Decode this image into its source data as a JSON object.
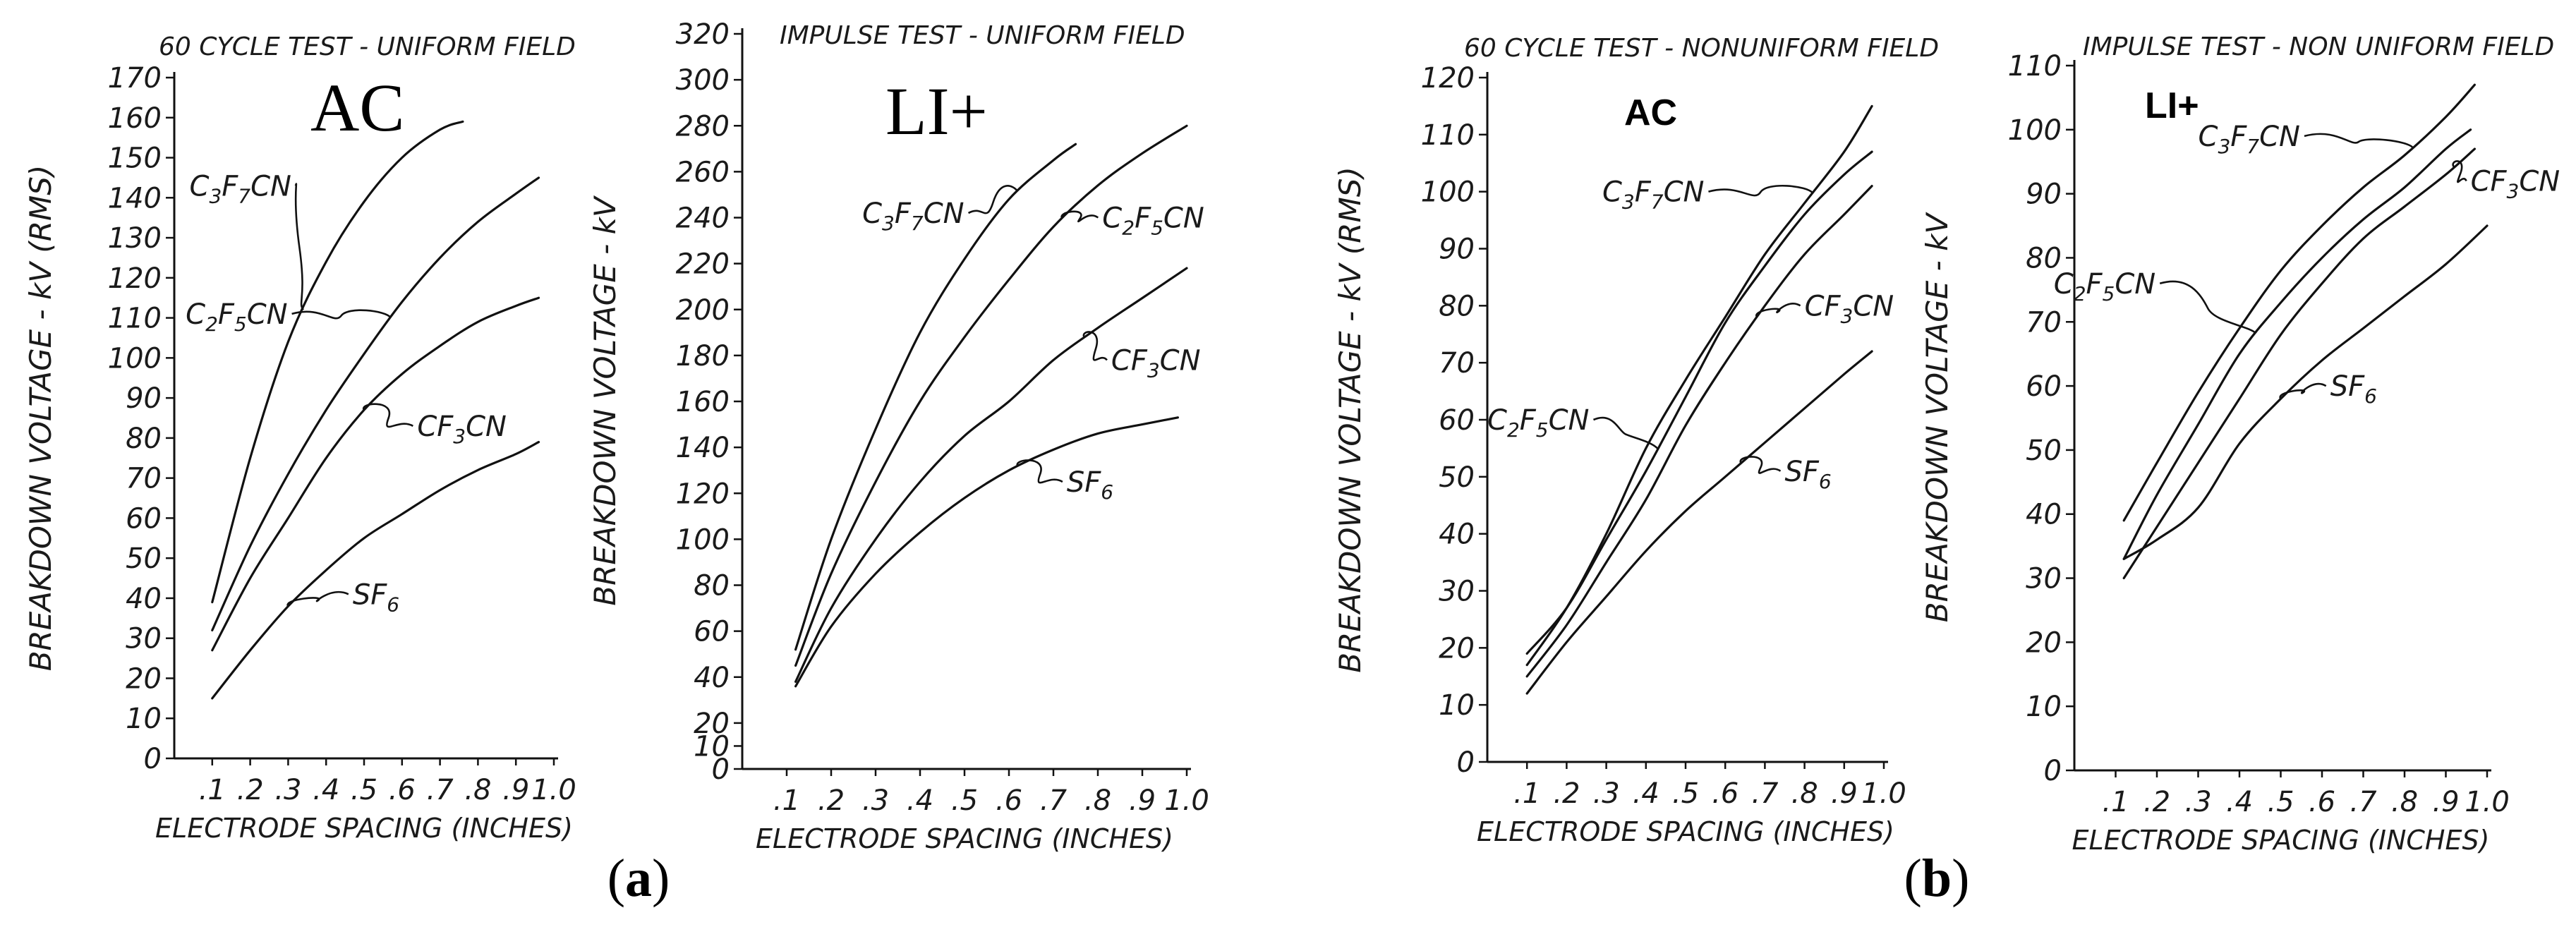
{
  "figure": {
    "panel_labels": [
      {
        "paren_open": "(",
        "letter": "a",
        "paren_close": ")"
      },
      {
        "paren_open": "(",
        "letter": "b",
        "paren_close": ")"
      }
    ]
  },
  "chart_data": [
    {
      "type": "line",
      "title": "60 CYCLE TEST - UNIFORM FIELD",
      "badge": "AC",
      "badge_style": "serif",
      "xlabel": "ELECTRODE SPACING (INCHES)",
      "ylabel": "BREAKDOWN VOLTAGE - kV (RMS)",
      "x_ticks": [
        ".1",
        ".2",
        ".3",
        ".4",
        ".5",
        ".6",
        ".7",
        ".8",
        ".9",
        "1.0"
      ],
      "y_ticks": [
        "0",
        "10",
        "20",
        "30",
        "40",
        "50",
        "60",
        "70",
        "80",
        "90",
        "100",
        "110",
        "120",
        "130",
        "140",
        "150",
        "160",
        "170"
      ],
      "xlim": [
        0,
        1.0
      ],
      "ylim": [
        0,
        170
      ],
      "grid": false,
      "series": [
        {
          "name": "C3F7CN",
          "x": [
            0.1,
            0.2,
            0.3,
            0.4,
            0.5,
            0.6,
            0.7,
            0.76
          ],
          "y": [
            39,
            75,
            104,
            124,
            139,
            150,
            157,
            159
          ],
          "label": {
            "base": "C",
            "parts": [
              [
                "3",
                true
              ],
              [
                "F",
                false
              ],
              [
                "7",
                true
              ],
              [
                "CN",
                false
              ]
            ]
          },
          "anchor": 0.34,
          "label_pos": [
            0.04,
            143
          ]
        },
        {
          "name": "C2F5CN",
          "x": [
            0.1,
            0.2,
            0.3,
            0.4,
            0.5,
            0.6,
            0.7,
            0.8,
            0.9,
            0.96
          ],
          "y": [
            32,
            53,
            71,
            87,
            101,
            114,
            125,
            134,
            141,
            145
          ],
          "label": {
            "base": "C",
            "parts": [
              [
                "2",
                true
              ],
              [
                "F",
                false
              ],
              [
                "5",
                true
              ],
              [
                "CN",
                false
              ]
            ]
          },
          "anchor": 0.57,
          "label_pos": [
            0.03,
            111
          ]
        },
        {
          "name": "CF3CN",
          "x": [
            0.1,
            0.2,
            0.3,
            0.4,
            0.5,
            0.6,
            0.7,
            0.8,
            0.9,
            0.96
          ],
          "y": [
            27,
            45,
            60,
            75,
            87,
            96,
            103,
            109,
            113,
            115
          ],
          "label": {
            "base": "CF",
            "parts": [
              [
                "3",
                true
              ],
              [
                "CN",
                false
              ]
            ]
          },
          "anchor": 0.5,
          "label_pos": [
            0.64,
            83
          ]
        },
        {
          "name": "SF6",
          "x": [
            0.1,
            0.2,
            0.3,
            0.4,
            0.5,
            0.6,
            0.7,
            0.8,
            0.9,
            0.96
          ],
          "y": [
            15,
            27,
            38,
            47,
            55,
            61,
            67,
            72,
            76,
            79
          ],
          "label": {
            "base": "SF",
            "parts": [
              [
                "6",
                true
              ]
            ]
          },
          "anchor": 0.3,
          "label_pos": [
            0.47,
            41
          ]
        }
      ]
    },
    {
      "type": "line",
      "title": "IMPULSE TEST - UNIFORM FIELD",
      "badge": "LI+",
      "badge_style": "serif",
      "xlabel": "ELECTRODE SPACING (INCHES)",
      "ylabel": "BREAKDOWN VOLTAGE - kV",
      "x_ticks": [
        ".1",
        ".2",
        ".3",
        ".4",
        ".5",
        ".6",
        ".7",
        ".8",
        ".9",
        "1.0"
      ],
      "y_ticks": [
        "0",
        "10",
        "20",
        "40",
        "60",
        "80",
        "100",
        "120",
        "140",
        "160",
        "180",
        "200",
        "220",
        "240",
        "260",
        "280",
        "300",
        "320"
      ],
      "xlim": [
        0,
        1.0
      ],
      "ylim": [
        0,
        320
      ],
      "grid": false,
      "series": [
        {
          "name": "C3F7CN",
          "x": [
            0.12,
            0.2,
            0.3,
            0.4,
            0.5,
            0.6,
            0.7,
            0.75
          ],
          "y": [
            52,
            100,
            148,
            190,
            222,
            248,
            265,
            272
          ],
          "label": {
            "base": "C",
            "parts": [
              [
                "3",
                true
              ],
              [
                "F",
                false
              ],
              [
                "7",
                true
              ],
              [
                "CN",
                false
              ]
            ]
          },
          "anchor": 0.62,
          "label_pos": [
            0.27,
            242
          ]
        },
        {
          "name": "C2F5CN",
          "x": [
            0.12,
            0.2,
            0.3,
            0.4,
            0.5,
            0.6,
            0.7,
            0.8,
            0.9,
            1.0
          ],
          "y": [
            45,
            85,
            125,
            160,
            188,
            213,
            236,
            254,
            268,
            280
          ],
          "label": {
            "base": "C",
            "parts": [
              [
                "2",
                true
              ],
              [
                "F",
                false
              ],
              [
                "5",
                true
              ],
              [
                "CN",
                false
              ]
            ]
          },
          "anchor": 0.72,
          "label_pos": [
            0.81,
            240
          ]
        },
        {
          "name": "CF3CN",
          "x": [
            0.12,
            0.2,
            0.3,
            0.4,
            0.5,
            0.6,
            0.7,
            0.8,
            0.9,
            1.0
          ],
          "y": [
            38,
            70,
            100,
            125,
            145,
            160,
            178,
            192,
            205,
            218
          ],
          "label": {
            "base": "CF",
            "parts": [
              [
                "3",
                true
              ],
              [
                "CN",
                false
              ]
            ]
          },
          "anchor": 0.77,
          "label_pos": [
            0.83,
            178
          ]
        },
        {
          "name": "SF6",
          "x": [
            0.12,
            0.2,
            0.3,
            0.4,
            0.5,
            0.6,
            0.7,
            0.8,
            0.9,
            0.98
          ],
          "y": [
            36,
            62,
            85,
            103,
            118,
            130,
            139,
            146,
            150,
            153
          ],
          "label": {
            "base": "SF",
            "parts": [
              [
                "6",
                true
              ]
            ]
          },
          "anchor": 0.62,
          "label_pos": [
            0.73,
            125
          ]
        }
      ]
    },
    {
      "type": "line",
      "title": "60 CYCLE TEST - NONUNIFORM FIELD",
      "badge": "AC",
      "badge_style": "sans-bold",
      "xlabel": "ELECTRODE SPACING (INCHES)",
      "ylabel": "BREAKDOWN VOLTAGE - kV (RMS)",
      "x_ticks": [
        ".1",
        ".2",
        ".3",
        ".4",
        ".5",
        ".6",
        ".7",
        ".8",
        ".9",
        "1.0"
      ],
      "y_ticks": [
        "0",
        "10",
        "20",
        "30",
        "40",
        "50",
        "60",
        "70",
        "80",
        "90",
        "100",
        "110",
        "120"
      ],
      "xlim": [
        0,
        1.0
      ],
      "ylim": [
        0,
        120
      ],
      "grid": false,
      "series": [
        {
          "name": "C3F7CN",
          "x": [
            0.1,
            0.2,
            0.3,
            0.4,
            0.5,
            0.6,
            0.7,
            0.8,
            0.9,
            0.97
          ],
          "y": [
            17,
            27,
            40,
            55,
            67,
            78,
            89,
            98,
            107,
            115
          ],
          "label": {
            "base": "C",
            "parts": [
              [
                "3",
                true
              ],
              [
                "F",
                false
              ],
              [
                "7",
                true
              ],
              [
                "CN",
                false
              ]
            ]
          },
          "anchor": 0.82,
          "label_pos": [
            0.29,
            100
          ]
        },
        {
          "name": "C2F5CN",
          "x": [
            0.1,
            0.2,
            0.3,
            0.4,
            0.5,
            0.6,
            0.7,
            0.8,
            0.9,
            0.97
          ],
          "y": [
            19,
            27,
            39,
            51,
            64,
            77,
            87,
            96,
            103,
            107
          ],
          "label": {
            "base": "C",
            "parts": [
              [
                "2",
                true
              ],
              [
                "F",
                false
              ],
              [
                "5",
                true
              ],
              [
                "CN",
                false
              ]
            ]
          },
          "anchor": 0.43,
          "label_pos": [
            0.0,
            60
          ]
        },
        {
          "name": "CF3CN",
          "x": [
            0.1,
            0.2,
            0.3,
            0.4,
            0.5,
            0.6,
            0.7,
            0.8,
            0.9,
            0.97
          ],
          "y": [
            15,
            24,
            35,
            46,
            59,
            70,
            80,
            89,
            96,
            101
          ],
          "label": {
            "base": "CF",
            "parts": [
              [
                "3",
                true
              ],
              [
                "CN",
                false
              ]
            ]
          },
          "anchor": 0.68,
          "label_pos": [
            0.8,
            80
          ]
        },
        {
          "name": "SF6",
          "x": [
            0.1,
            0.2,
            0.3,
            0.4,
            0.5,
            0.6,
            0.7,
            0.8,
            0.9,
            0.97
          ],
          "y": [
            12,
            21,
            29,
            37,
            44,
            50,
            56,
            62,
            68,
            72
          ],
          "label": {
            "base": "SF",
            "parts": [
              [
                "6",
                true
              ]
            ]
          },
          "anchor": 0.64,
          "label_pos": [
            0.75,
            51
          ]
        }
      ]
    },
    {
      "type": "line",
      "title": "IMPULSE TEST - NON UNIFORM FIELD",
      "badge": "LI+",
      "badge_style": "sans-bold",
      "xlabel": "ELECTRODE SPACING (INCHES)",
      "ylabel": "BREAKDOWN VOLTAGE - kV",
      "x_ticks": [
        ".1",
        ".2",
        ".3",
        ".4",
        ".5",
        ".6",
        ".7",
        ".8",
        ".9",
        "1.0"
      ],
      "y_ticks": [
        "0",
        "10",
        "20",
        "30",
        "40",
        "50",
        "60",
        "70",
        "80",
        "90",
        "100",
        "110"
      ],
      "xlim": [
        0,
        1.0
      ],
      "ylim": [
        0,
        110
      ],
      "grid": false,
      "series": [
        {
          "name": "C3F7CN",
          "x": [
            0.12,
            0.2,
            0.3,
            0.4,
            0.5,
            0.6,
            0.7,
            0.8,
            0.9,
            0.97
          ],
          "y": [
            39,
            48,
            59,
            69,
            78,
            85,
            91,
            96,
            102,
            107
          ],
          "label": {
            "base": "C",
            "parts": [
              [
                "3",
                true
              ],
              [
                "F",
                false
              ],
              [
                "7",
                true
              ],
              [
                "CN",
                false
              ]
            ]
          },
          "anchor": 0.82,
          "label_pos": [
            0.3,
            99
          ]
        },
        {
          "name": "C2F5CN",
          "x": [
            0.12,
            0.2,
            0.3,
            0.4,
            0.5,
            0.6,
            0.7,
            0.8,
            0.9,
            0.96
          ],
          "y": [
            33,
            43,
            54,
            65,
            73,
            80,
            86,
            91,
            97,
            100
          ],
          "label": {
            "base": "C",
            "parts": [
              [
                "2",
                true
              ],
              [
                "F",
                false
              ],
              [
                "5",
                true
              ],
              [
                "CN",
                false
              ]
            ]
          },
          "anchor": 0.44,
          "label_pos": [
            -0.05,
            76
          ]
        },
        {
          "name": "CF3CN",
          "x": [
            0.12,
            0.2,
            0.3,
            0.4,
            0.5,
            0.6,
            0.7,
            0.8,
            0.9,
            0.97
          ],
          "y": [
            30,
            38,
            48,
            58,
            68,
            76,
            83,
            88,
            93,
            97
          ],
          "label": {
            "base": "CF",
            "parts": [
              [
                "3",
                true
              ],
              [
                "CN",
                false
              ]
            ]
          },
          "anchor": 0.92,
          "label_pos": [
            0.96,
            92
          ]
        },
        {
          "name": "SF6",
          "x": [
            0.12,
            0.2,
            0.3,
            0.4,
            0.5,
            0.6,
            0.7,
            0.8,
            0.9,
            1.0
          ],
          "y": [
            33,
            36,
            41,
            51,
            58,
            64,
            69,
            74,
            79,
            85
          ],
          "label": {
            "base": "SF",
            "parts": [
              [
                "6",
                true
              ]
            ]
          },
          "anchor": 0.5,
          "label_pos": [
            0.62,
            60
          ]
        }
      ]
    }
  ]
}
